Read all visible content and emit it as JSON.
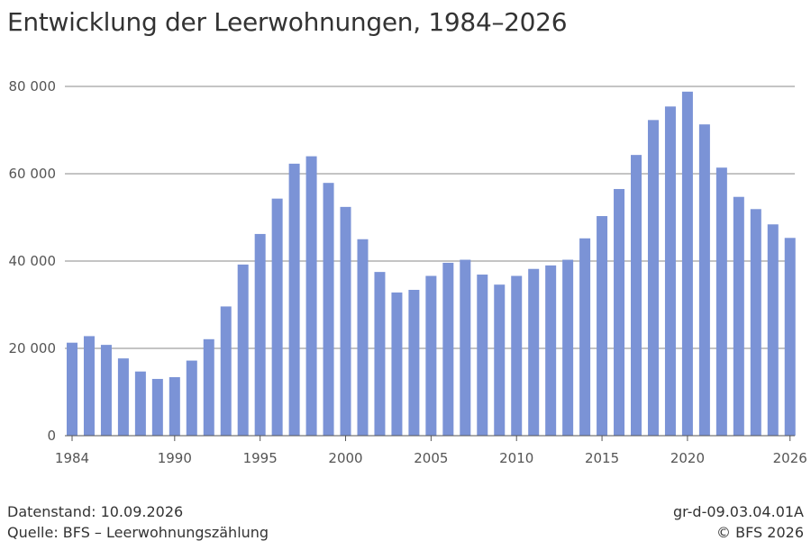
{
  "title": "Entwicklung der Leerwohnungen, 1984–2026",
  "footer": {
    "datenstand": "Datenstand: 10.09.2026",
    "quelle": "Quelle: BFS – Leerwohnungszählung",
    "code": "gr-d-09.03.04.01A",
    "copyright": "© BFS 2026"
  },
  "colors": {
    "bar": "#7b93d6",
    "grid": "#888888",
    "axis": "#555555"
  },
  "chart_data": {
    "type": "bar",
    "title": "Entwicklung der Leerwohnungen, 1984–2026",
    "xlabel": "",
    "ylabel": "",
    "ylim": [
      0,
      80000
    ],
    "yticks": [
      0,
      20000,
      40000,
      60000,
      80000
    ],
    "ytick_labels": [
      "0",
      "20 000",
      "40 000",
      "60 000",
      "80 000"
    ],
    "xtick_labels": [
      "1984",
      "1990",
      "1995",
      "2000",
      "2005",
      "2010",
      "2015",
      "2020",
      "2026"
    ],
    "grid": true,
    "categories": [
      "1984",
      "1985",
      "1986",
      "1987",
      "1988",
      "1989",
      "1990",
      "1991",
      "1992",
      "1993",
      "1994",
      "1995",
      "1996",
      "1997",
      "1998",
      "1999",
      "2000",
      "2001",
      "2002",
      "2003",
      "2004",
      "2005",
      "2006",
      "2007",
      "2008",
      "2009",
      "2010",
      "2011",
      "2012",
      "2013",
      "2014",
      "2015",
      "2016",
      "2017",
      "2018",
      "2019",
      "2020",
      "2021",
      "2022",
      "2023",
      "2024",
      "2025",
      "2026"
    ],
    "values": [
      21300,
      22800,
      20800,
      17700,
      14700,
      13000,
      13400,
      17200,
      22100,
      29600,
      39200,
      46200,
      54300,
      62300,
      64000,
      57900,
      52400,
      45000,
      37500,
      32800,
      33400,
      36600,
      39600,
      40300,
      36900,
      34600,
      36600,
      38200,
      39000,
      40300,
      45200,
      50300,
      56500,
      64300,
      72300,
      75400,
      78800,
      71300,
      61400,
      54700,
      51900,
      48400,
      45300
    ]
  }
}
